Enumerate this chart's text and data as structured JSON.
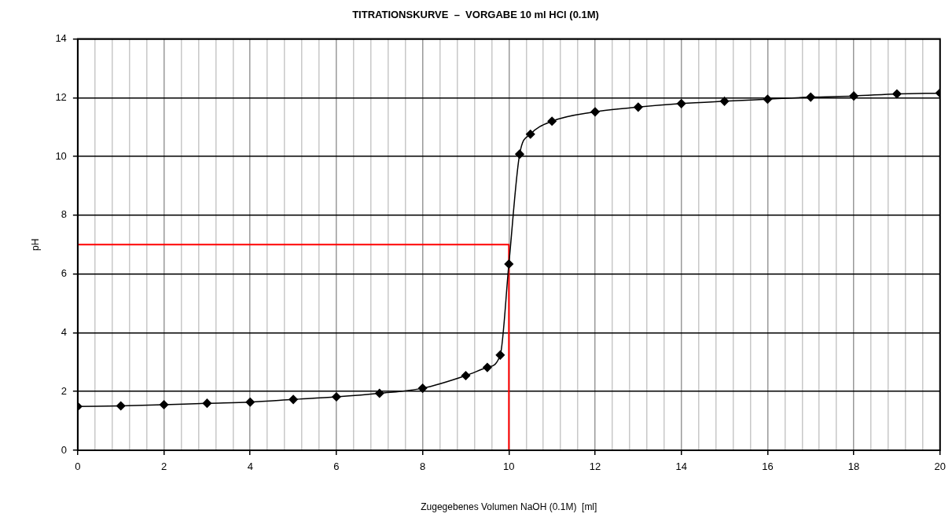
{
  "chart_data": {
    "type": "line",
    "title": "TITRATIONSKURVE  –  VORGABE 10 ml HCl (0.1M)",
    "xlabel": "Zugegebenes Volumen NaOH (0.1M)  [ml]",
    "ylabel": "pH",
    "xlim": [
      0,
      20
    ],
    "ylim": [
      0,
      14
    ],
    "xticks": [
      0,
      {
        "value": 0.4,
        "label": null
      },
      {
        "value": 0.8,
        "label": null
      },
      {
        "value": 1.2,
        "label": null
      },
      {
        "value": 1.6,
        "label": null
      },
      2,
      {
        "value": 2.4,
        "label": null
      },
      {
        "value": 2.8,
        "label": null
      },
      {
        "value": 3.2,
        "label": null
      },
      {
        "value": 3.6,
        "label": null
      },
      4,
      {
        "value": 4.4,
        "label": null
      },
      {
        "value": 4.8,
        "label": null
      },
      {
        "value": 5.2,
        "label": null
      },
      {
        "value": 5.6,
        "label": null
      },
      6,
      {
        "value": 6.4,
        "label": null
      },
      {
        "value": 6.8,
        "label": null
      },
      {
        "value": 7.2,
        "label": null
      },
      {
        "value": 7.6,
        "label": null
      },
      8,
      {
        "value": 8.4,
        "label": null
      },
      {
        "value": 8.8,
        "label": null
      },
      {
        "value": 9.2,
        "label": null
      },
      {
        "value": 9.6,
        "label": null
      },
      10,
      {
        "value": 10.4,
        "label": null
      },
      {
        "value": 10.8,
        "label": null
      },
      {
        "value": 11.2,
        "label": null
      },
      {
        "value": 11.6,
        "label": null
      },
      12,
      {
        "value": 12.4,
        "label": null
      },
      {
        "value": 12.8,
        "label": null
      },
      {
        "value": 13.2,
        "label": null
      },
      {
        "value": 13.6,
        "label": null
      },
      14,
      {
        "value": 14.4,
        "label": null
      },
      {
        "value": 14.8,
        "label": null
      },
      {
        "value": 15.2,
        "label": null
      },
      {
        "value": 15.6,
        "label": null
      },
      16,
      {
        "value": 16.4,
        "label": null
      },
      {
        "value": 16.8,
        "label": null
      },
      {
        "value": 17.2,
        "label": null
      },
      {
        "value": 17.6,
        "label": null
      },
      18,
      {
        "value": 18.4,
        "label": null
      },
      {
        "value": 18.8,
        "label": null
      },
      {
        "value": 19.2,
        "label": null
      },
      {
        "value": 19.6,
        "label": null
      },
      20
    ],
    "yticks": [
      0,
      2,
      4,
      6,
      8,
      10,
      12,
      14
    ],
    "grid": true,
    "legend": false,
    "series": [
      {
        "color": "#000000",
        "marker": "diamond",
        "x": [
          0,
          1,
          2,
          3,
          4,
          5,
          6,
          7,
          8,
          9,
          9.5,
          9.8,
          10,
          10.25,
          10.5,
          11,
          12,
          13,
          14,
          15,
          16,
          17,
          18,
          19,
          20
        ],
        "values": [
          1.49,
          1.51,
          1.55,
          1.6,
          1.64,
          1.73,
          1.82,
          1.94,
          2.11,
          2.54,
          2.82,
          3.24,
          6.34,
          10.08,
          10.76,
          11.2,
          11.52,
          11.68,
          11.8,
          11.88,
          11.95,
          12.02,
          12.06,
          12.13,
          12.16
        ]
      },
      {
        "color": "#ff0000",
        "marker": "none",
        "x": [
          0,
          10,
          10
        ],
        "values": [
          7,
          7,
          0
        ]
      }
    ]
  }
}
